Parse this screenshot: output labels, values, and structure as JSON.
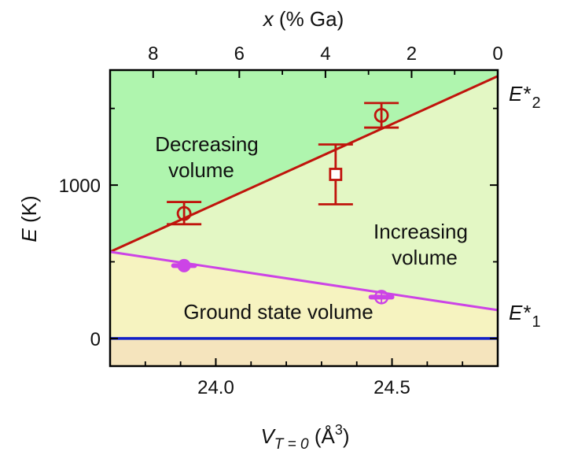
{
  "chart_data": {
    "type": "scatter",
    "title": "",
    "x_bottom": {
      "label_main": "V",
      "label_sub": "T = 0",
      "label_unit": " (Å",
      "label_sup": "3",
      "label_close": ")",
      "range": [
        23.7,
        24.8
      ],
      "ticks": [
        24.0,
        24.5
      ],
      "tick_labels": [
        "24.0",
        "24.5"
      ],
      "minor_ticks": [
        23.8,
        23.9,
        24.1,
        24.2,
        24.3,
        24.4,
        24.6,
        24.7
      ]
    },
    "x_top": {
      "label_main": "x",
      "label_rest": " (% Ga)",
      "range": [
        9.0,
        0.0
      ],
      "ticks": [
        8,
        6,
        4,
        2,
        0
      ],
      "tick_labels": [
        "8",
        "6",
        "4",
        "2",
        "0"
      ]
    },
    "y": {
      "label_main": "E",
      "label_rest": " (K)",
      "range": [
        -180,
        1750
      ],
      "ticks": [
        0,
        1000
      ],
      "tick_labels": [
        "0",
        "1000"
      ],
      "minor_ticks": [
        500,
        1500
      ]
    },
    "regions": [
      {
        "name": "Decreasing volume",
        "line1": "Decreasing",
        "line2": "volume",
        "color": "#aff5ae"
      },
      {
        "name": "Increasing volume",
        "line1": "Increasing",
        "line2": "volume",
        "color": "#e3f7c4"
      },
      {
        "name": "Ground state volume",
        "line1": "Ground state volume",
        "color": "#f6f3c0"
      },
      {
        "name": "below zero",
        "color": "#f5e4bd"
      }
    ],
    "lines": [
      {
        "label": "E*",
        "label_sub": "2",
        "color": "#c0140c",
        "x": [
          23.7,
          24.8
        ],
        "y": [
          565,
          1710
        ]
      },
      {
        "label": "E*",
        "label_sub": "1",
        "color": "#cc44e6",
        "x": [
          23.7,
          24.8
        ],
        "y": [
          565,
          185
        ]
      },
      {
        "label": "",
        "color": "#1120c8",
        "x": [
          23.7,
          24.8
        ],
        "y": [
          0,
          0
        ]
      }
    ],
    "points": [
      {
        "marker": "circle-open",
        "color": "#c0140c",
        "x": 23.91,
        "y": 815,
        "y_err_low": 745,
        "y_err_high": 890
      },
      {
        "marker": "square-open",
        "color": "#c0140c",
        "x": 24.34,
        "y": 1070,
        "y_err_low": 875,
        "y_err_high": 1265
      },
      {
        "marker": "circle-open",
        "color": "#c0140c",
        "x": 24.47,
        "y": 1455,
        "y_err_low": 1375,
        "y_err_high": 1535
      },
      {
        "marker": "circle-filled",
        "color": "#cc44e6",
        "x": 23.91,
        "y": 475,
        "x_err_low": 23.88,
        "x_err_high": 23.94
      },
      {
        "marker": "circle-crossed",
        "color": "#cc44e6",
        "x": 24.47,
        "y": 270,
        "x_err_low": 24.44,
        "x_err_high": 24.5
      }
    ],
    "grid": false,
    "legend": "none"
  }
}
